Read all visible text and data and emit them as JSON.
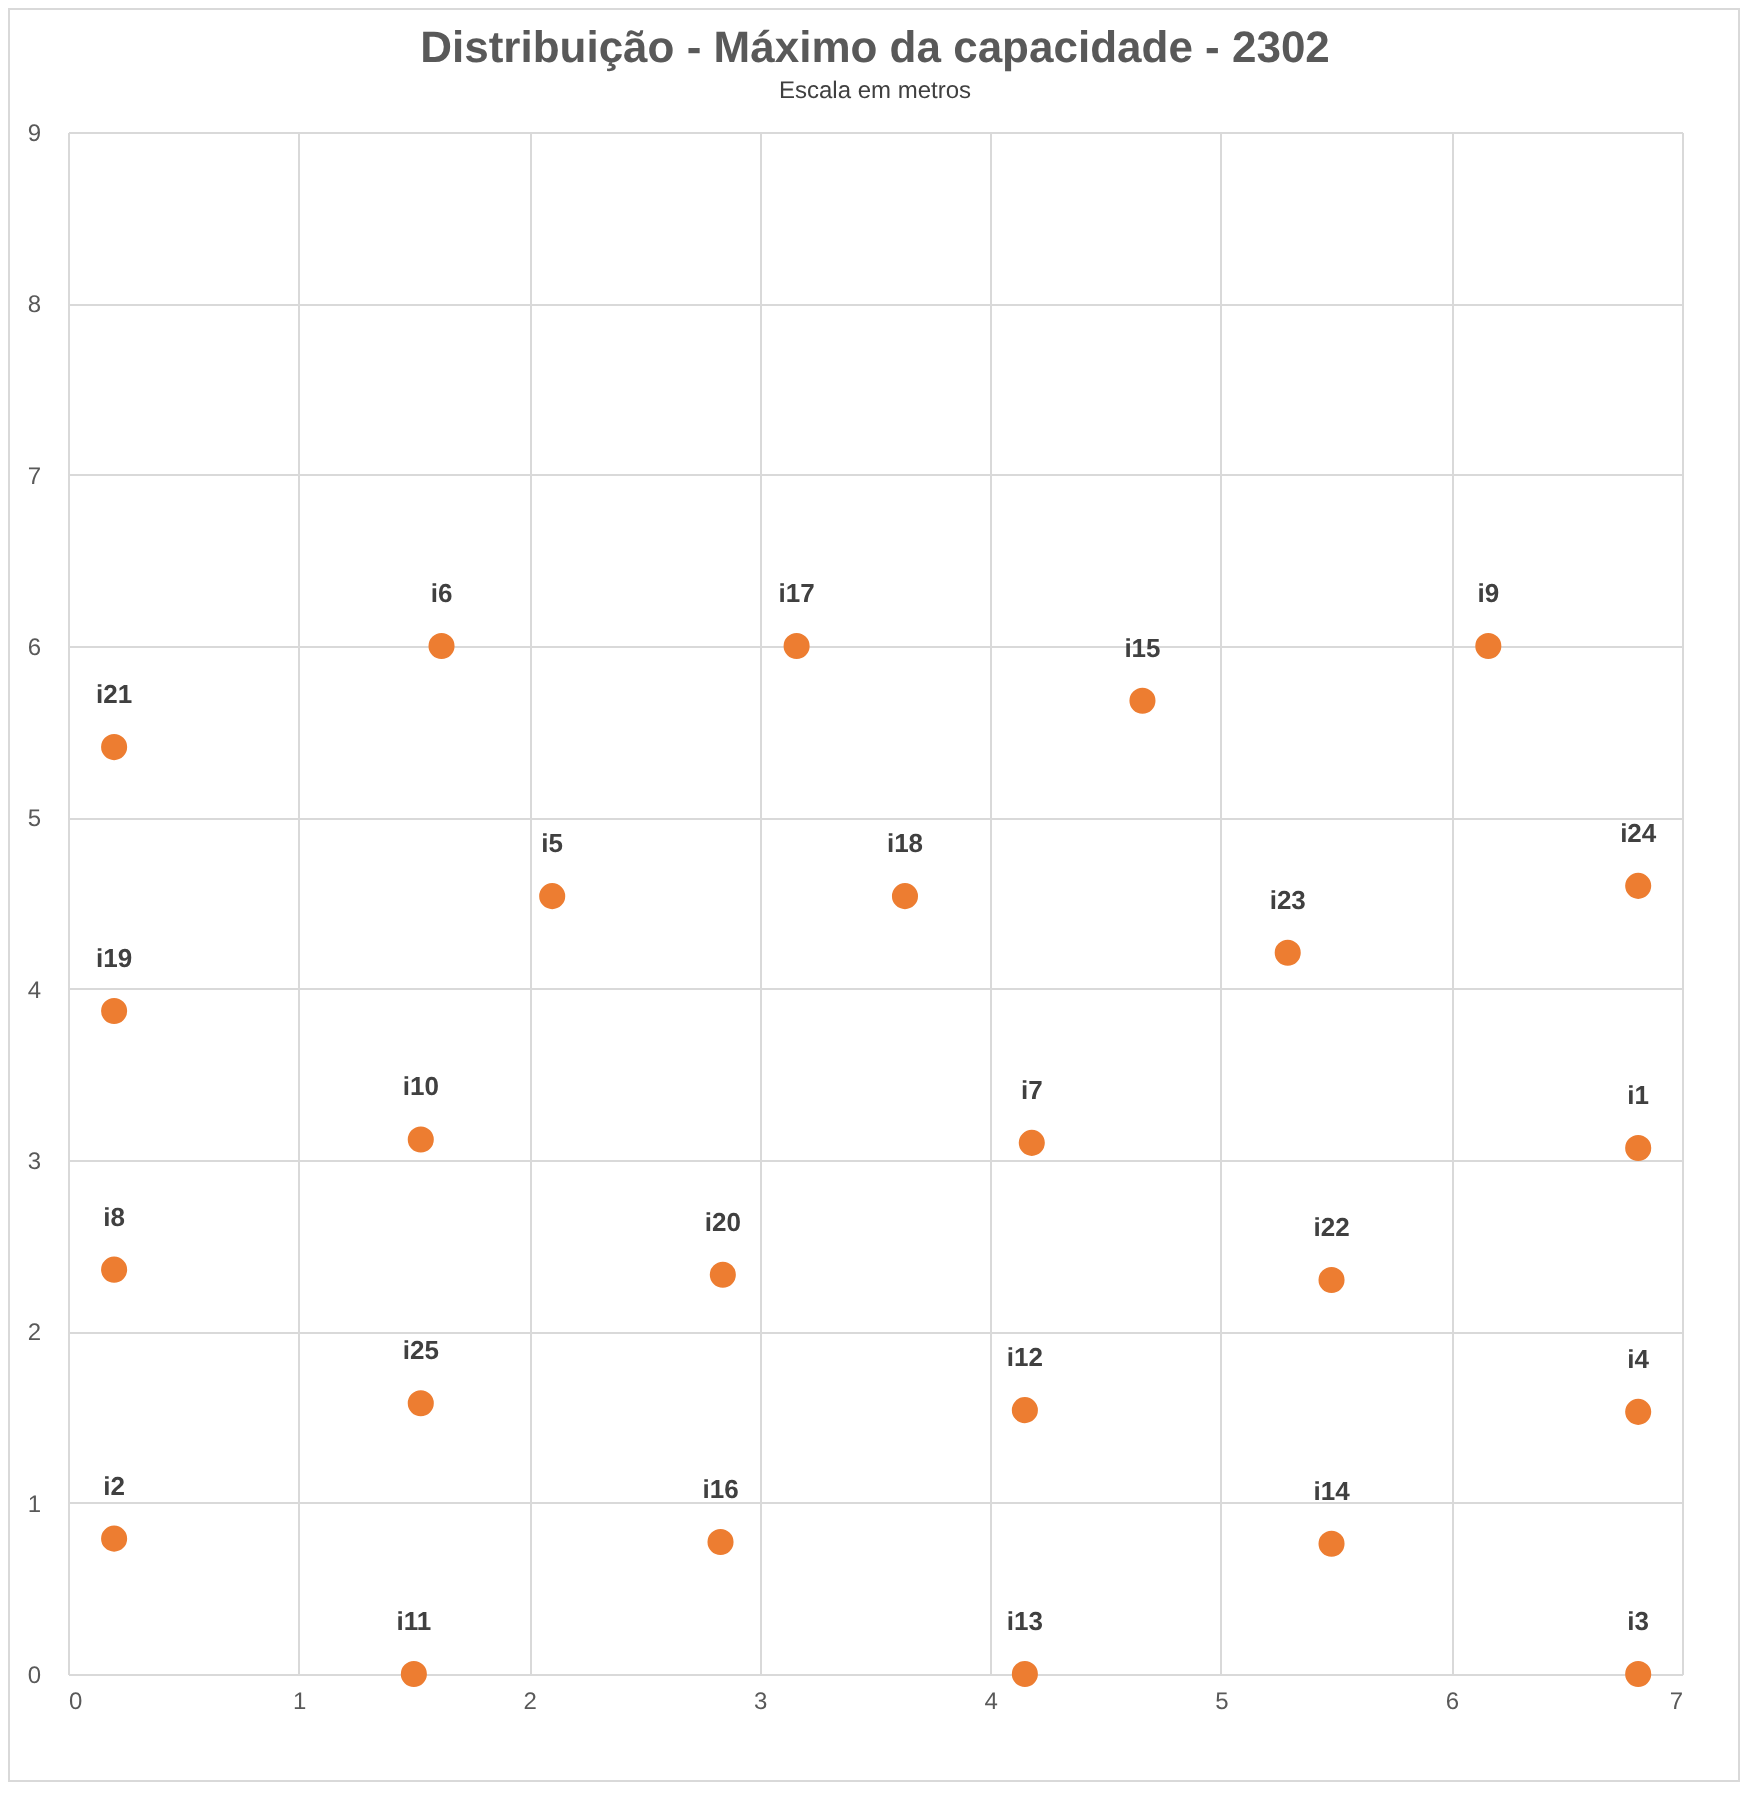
{
  "chart_data": {
    "type": "scatter",
    "title": "Distribuição - Máximo da capacidade - 2302",
    "subtitle": "Escala em metros",
    "xlim": [
      0,
      7
    ],
    "xticks": [
      0,
      1,
      2,
      3,
      4,
      5,
      6,
      7
    ],
    "ylim": [
      0,
      9
    ],
    "yticks": [
      0,
      1,
      2,
      3,
      4,
      5,
      6,
      7,
      8,
      9
    ],
    "grid": true,
    "marker": "circle",
    "series": [
      {
        "color": "#ed7d31",
        "x": [
          6.81,
          0.2,
          6.81,
          6.81,
          2.1,
          1.62,
          4.18,
          0.2,
          6.16,
          1.53,
          1.5,
          4.15,
          4.15,
          5.48,
          4.66,
          2.83,
          3.16,
          3.63,
          0.2,
          2.84,
          0.2,
          5.48,
          5.29,
          6.81,
          1.53
        ],
        "values": [
          3.07,
          0.79,
          0,
          1.53,
          4.54,
          6,
          3.1,
          2.36,
          6,
          3.12,
          0,
          1.54,
          0,
          0.76,
          5.68,
          0.77,
          6,
          4.54,
          3.87,
          2.33,
          5.41,
          2.3,
          4.21,
          4.6,
          1.58
        ]
      }
    ],
    "annotations": [
      {
        "text": "i1",
        "x": 6.81,
        "y": 3.07
      },
      {
        "text": "i2",
        "x": 0.2,
        "y": 0.79
      },
      {
        "text": "i3",
        "x": 6.81,
        "y": 0
      },
      {
        "text": "i4",
        "x": 6.81,
        "y": 1.53
      },
      {
        "text": "i5",
        "x": 2.1,
        "y": 4.54
      },
      {
        "text": "i6",
        "x": 1.62,
        "y": 6
      },
      {
        "text": "i7",
        "x": 4.18,
        "y": 3.1
      },
      {
        "text": "i8",
        "x": 0.2,
        "y": 2.36
      },
      {
        "text": "i9",
        "x": 6.16,
        "y": 6
      },
      {
        "text": "i10",
        "x": 1.53,
        "y": 3.12
      },
      {
        "text": "i11",
        "x": 1.5,
        "y": 0
      },
      {
        "text": "i12",
        "x": 4.15,
        "y": 1.54
      },
      {
        "text": "i13",
        "x": 4.15,
        "y": 0
      },
      {
        "text": "i14",
        "x": 5.48,
        "y": 0.76
      },
      {
        "text": "i15",
        "x": 4.66,
        "y": 5.68
      },
      {
        "text": "i16",
        "x": 2.83,
        "y": 0.77
      },
      {
        "text": "i17",
        "x": 3.16,
        "y": 6
      },
      {
        "text": "i18",
        "x": 3.63,
        "y": 4.54
      },
      {
        "text": "i19",
        "x": 0.2,
        "y": 3.87
      },
      {
        "text": "i20",
        "x": 2.84,
        "y": 2.33
      },
      {
        "text": "i21",
        "x": 0.2,
        "y": 5.41
      },
      {
        "text": "i22",
        "x": 5.48,
        "y": 2.3
      },
      {
        "text": "i23",
        "x": 5.29,
        "y": 4.21
      },
      {
        "text": "i24",
        "x": 6.81,
        "y": 4.6
      },
      {
        "text": "i25",
        "x": 1.53,
        "y": 1.58
      }
    ]
  }
}
